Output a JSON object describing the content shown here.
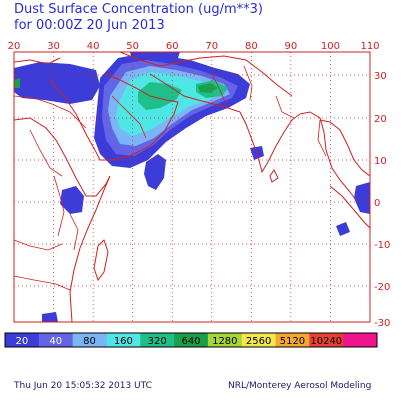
{
  "title_line1": "Dust Surface Concentration (ug/m**3)",
  "title_line2": "for 00:00Z 20 Jun 2013",
  "lon_ticks": [
    "20",
    "30",
    "40",
    "50",
    "60",
    "70",
    "80",
    "90",
    "100",
    "110"
  ],
  "lat_ticks": [
    "30",
    "20",
    "10",
    "0",
    "-10",
    "-20",
    "-30"
  ],
  "colorbar": [
    {
      "label": "20",
      "color": "#3c3cd8",
      "text": "#ffffff"
    },
    {
      "label": "40",
      "color": "#6464e6",
      "text": "#ffffff"
    },
    {
      "label": "80",
      "color": "#7ab6f5",
      "text": "#000000"
    },
    {
      "label": "160",
      "color": "#4fe6e6",
      "text": "#000000"
    },
    {
      "label": "320",
      "color": "#1fbf8a",
      "text": "#000000"
    },
    {
      "label": "640",
      "color": "#17a24a",
      "text": "#000000"
    },
    {
      "label": "1280",
      "color": "#a6d63a",
      "text": "#000000"
    },
    {
      "label": "2560",
      "color": "#f5e64a",
      "text": "#000000"
    },
    {
      "label": "5120",
      "color": "#f5a830",
      "text": "#000000"
    },
    {
      "label": "10240",
      "color": "#e84030",
      "text": "#000000"
    },
    {
      "label": "",
      "color": "#f0148c",
      "text": "#000000"
    }
  ],
  "footer_left": "Thu Jun 20 15:05:32 2013 UTC",
  "footer_right": "NRL/Monterey Aerosol Modeling",
  "colors": {
    "title": "#2b2bd6",
    "frame": "#d02020",
    "coast": "#d02020",
    "grid": "#d02020"
  }
}
